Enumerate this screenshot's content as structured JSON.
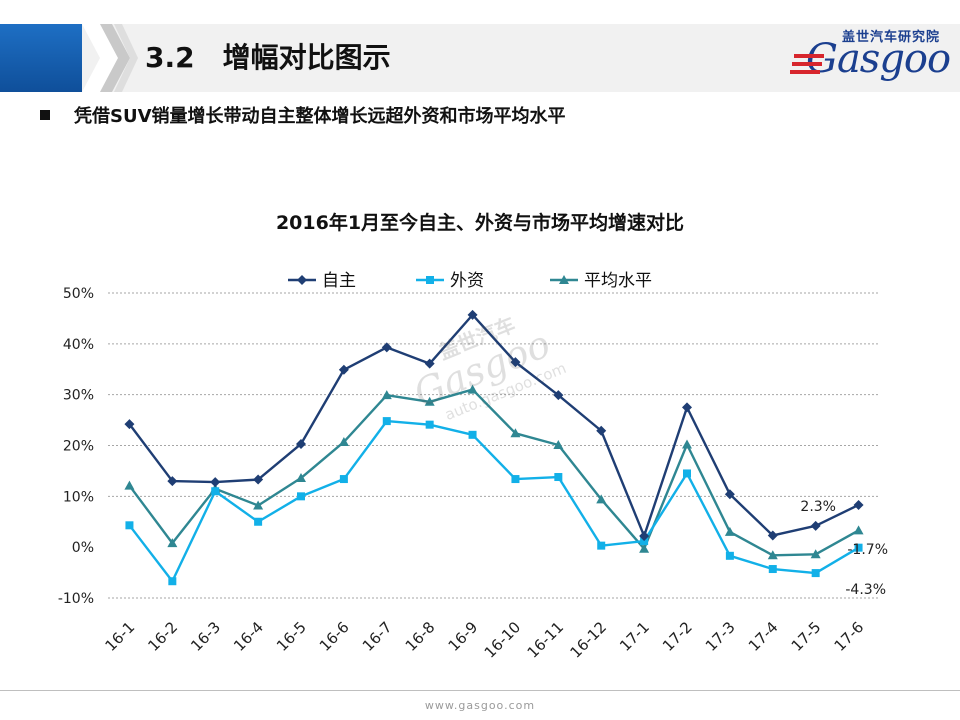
{
  "header": {
    "section_title": "3.2　增幅对比图示",
    "logo_cn": "盖世汽车研究院",
    "logo_word": "Gasgoo"
  },
  "subtitle": "凭借SUV销量增长带动自主整体增长远超外资和市场平均水平",
  "footer": {
    "url": "www.gasgoo.com"
  },
  "colors": {
    "header_blue": "#1a62b5",
    "series_zizhu": "#1f3e74",
    "series_waizi": "#12b0e8",
    "series_avg": "#2f8792"
  },
  "chart_data": {
    "type": "line",
    "title": "2016年1月至今自主、外资与市场平均增速对比",
    "categories": [
      "16-1",
      "16-2",
      "16-3",
      "16-4",
      "16-5",
      "16-6",
      "16-7",
      "16-8",
      "16-9",
      "16-10",
      "16-11",
      "16-12",
      "17-1",
      "17-2",
      "17-3",
      "17-4",
      "17-5",
      "17-6"
    ],
    "series": [
      {
        "name": "自主",
        "marker": "diamond",
        "values": [
          24.2,
          13.0,
          12.8,
          13.3,
          20.3,
          34.9,
          39.3,
          36.1,
          45.7,
          36.4,
          29.9,
          22.9,
          2.2,
          27.5,
          10.4,
          2.3,
          4.2,
          8.3
        ]
      },
      {
        "name": "外资",
        "marker": "square",
        "values": [
          4.3,
          -6.7,
          11.0,
          5.0,
          10.0,
          13.4,
          24.8,
          24.1,
          22.1,
          13.4,
          13.8,
          0.3,
          1.2,
          14.5,
          -1.7,
          -4.3,
          -5.1,
          -0.1
        ]
      },
      {
        "name": "平均水平",
        "marker": "triangle",
        "values": [
          12.1,
          0.8,
          11.5,
          8.2,
          13.6,
          20.7,
          29.9,
          28.6,
          31.0,
          22.4,
          20.1,
          9.4,
          -0.3,
          20.2,
          3.0,
          -1.6,
          -1.4,
          3.3
        ]
      }
    ],
    "ylim": [
      -10,
      50
    ],
    "yticks": [
      "-10%",
      "0%",
      "10%",
      "20%",
      "30%",
      "40%",
      "50%"
    ],
    "ytick_values": [
      -10,
      0,
      10,
      20,
      30,
      40,
      50
    ],
    "grid": true,
    "legend": "top-center",
    "annotations": [
      {
        "text": "2.3%",
        "series": "自主",
        "index": 15
      },
      {
        "text": "-1.7%",
        "series": "外资",
        "index": 14
      },
      {
        "text": "-4.3%",
        "series": "外资",
        "index": 15
      }
    ],
    "watermark_text": [
      "盖世汽车",
      "Gasgoo",
      "auto.gasgoo.com"
    ]
  }
}
